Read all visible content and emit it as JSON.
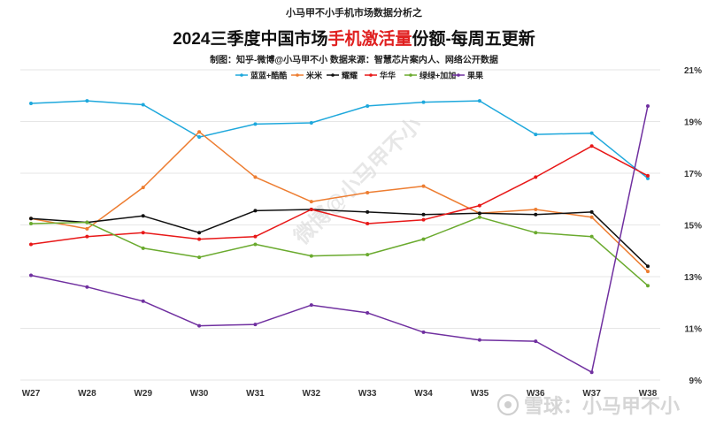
{
  "header": {
    "top_line": "小马甲不小手机市场数据分析之",
    "title_prefix": "2024三季度中国市场",
    "title_highlight": "手机激活量",
    "title_suffix": "份额-每周五更新",
    "subtitle": "制图：知乎-微博@小马甲不小   数据来源：智慧芯片案内人、网络公开数据"
  },
  "watermarks": {
    "diagonal": "微博@小马甲不小",
    "bottom_right": "雪球：小马甲不小"
  },
  "colors": {
    "highlight": "#e02020",
    "grid": "#e6e6e6"
  },
  "chart_data": {
    "type": "line",
    "categories": [
      "W27",
      "W28",
      "W29",
      "W30",
      "W31",
      "W32",
      "W33",
      "W34",
      "W35",
      "W36",
      "W37",
      "W38"
    ],
    "y_axis": {
      "position": "right",
      "ticks": [
        "9%",
        "11%",
        "13%",
        "15%",
        "17%",
        "19%",
        "21%"
      ],
      "ylim": [
        9,
        21
      ],
      "unit": "%"
    },
    "grid": true,
    "legend_position": "top-center",
    "series": [
      {
        "name": "蓝蓝+酷酷",
        "color": "#1ea8dc",
        "values": [
          19.7,
          19.8,
          19.65,
          18.4,
          18.9,
          18.95,
          19.6,
          19.75,
          19.8,
          18.5,
          18.55,
          16.8
        ]
      },
      {
        "name": "米米",
        "color": "#ed7d31",
        "values": [
          15.25,
          14.85,
          16.45,
          18.6,
          16.85,
          15.9,
          16.25,
          16.5,
          15.45,
          15.6,
          15.3,
          13.2
        ]
      },
      {
        "name": "耀耀",
        "color": "#111111",
        "values": [
          15.25,
          15.1,
          15.35,
          14.7,
          15.55,
          15.6,
          15.5,
          15.4,
          15.45,
          15.4,
          15.5,
          13.4
        ]
      },
      {
        "name": "华华",
        "color": "#e81818",
        "values": [
          14.25,
          14.55,
          14.7,
          14.45,
          14.55,
          15.6,
          15.05,
          15.2,
          15.75,
          16.85,
          18.05,
          16.9
        ]
      },
      {
        "name": "绿绿+加加",
        "color": "#6aaa2e",
        "values": [
          15.05,
          15.1,
          14.1,
          13.75,
          14.25,
          13.8,
          13.85,
          14.45,
          15.3,
          14.7,
          14.55,
          12.65
        ]
      },
      {
        "name": "果果",
        "color": "#7030a0",
        "values": [
          13.05,
          12.6,
          12.05,
          11.1,
          11.15,
          11.9,
          11.6,
          10.85,
          10.55,
          10.5,
          9.3,
          19.6
        ]
      }
    ]
  }
}
